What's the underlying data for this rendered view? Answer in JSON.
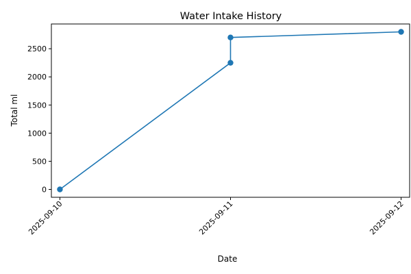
{
  "chart_data": {
    "type": "line",
    "title": "Water Intake History",
    "xlabel": "Date",
    "ylabel": "Total ml",
    "x_ticks": [
      "2025-09-10",
      "2025-09-11",
      "2025-09-12"
    ],
    "y_ticks": [
      0,
      500,
      1000,
      1500,
      2000,
      2500
    ],
    "xlim": [
      "2025-09-09T22:48",
      "2025-09-12T01:12"
    ],
    "ylim": [
      -140,
      2940
    ],
    "grid": false,
    "legend": "none",
    "series": [
      {
        "x": [
          "2025-09-10",
          "2025-09-11",
          "2025-09-11",
          "2025-09-12"
        ],
        "y": [
          0,
          2250,
          2700,
          2800
        ],
        "marker": "circle"
      }
    ],
    "colors": {
      "line": "#1f77b4",
      "axes": "#000000"
    }
  }
}
